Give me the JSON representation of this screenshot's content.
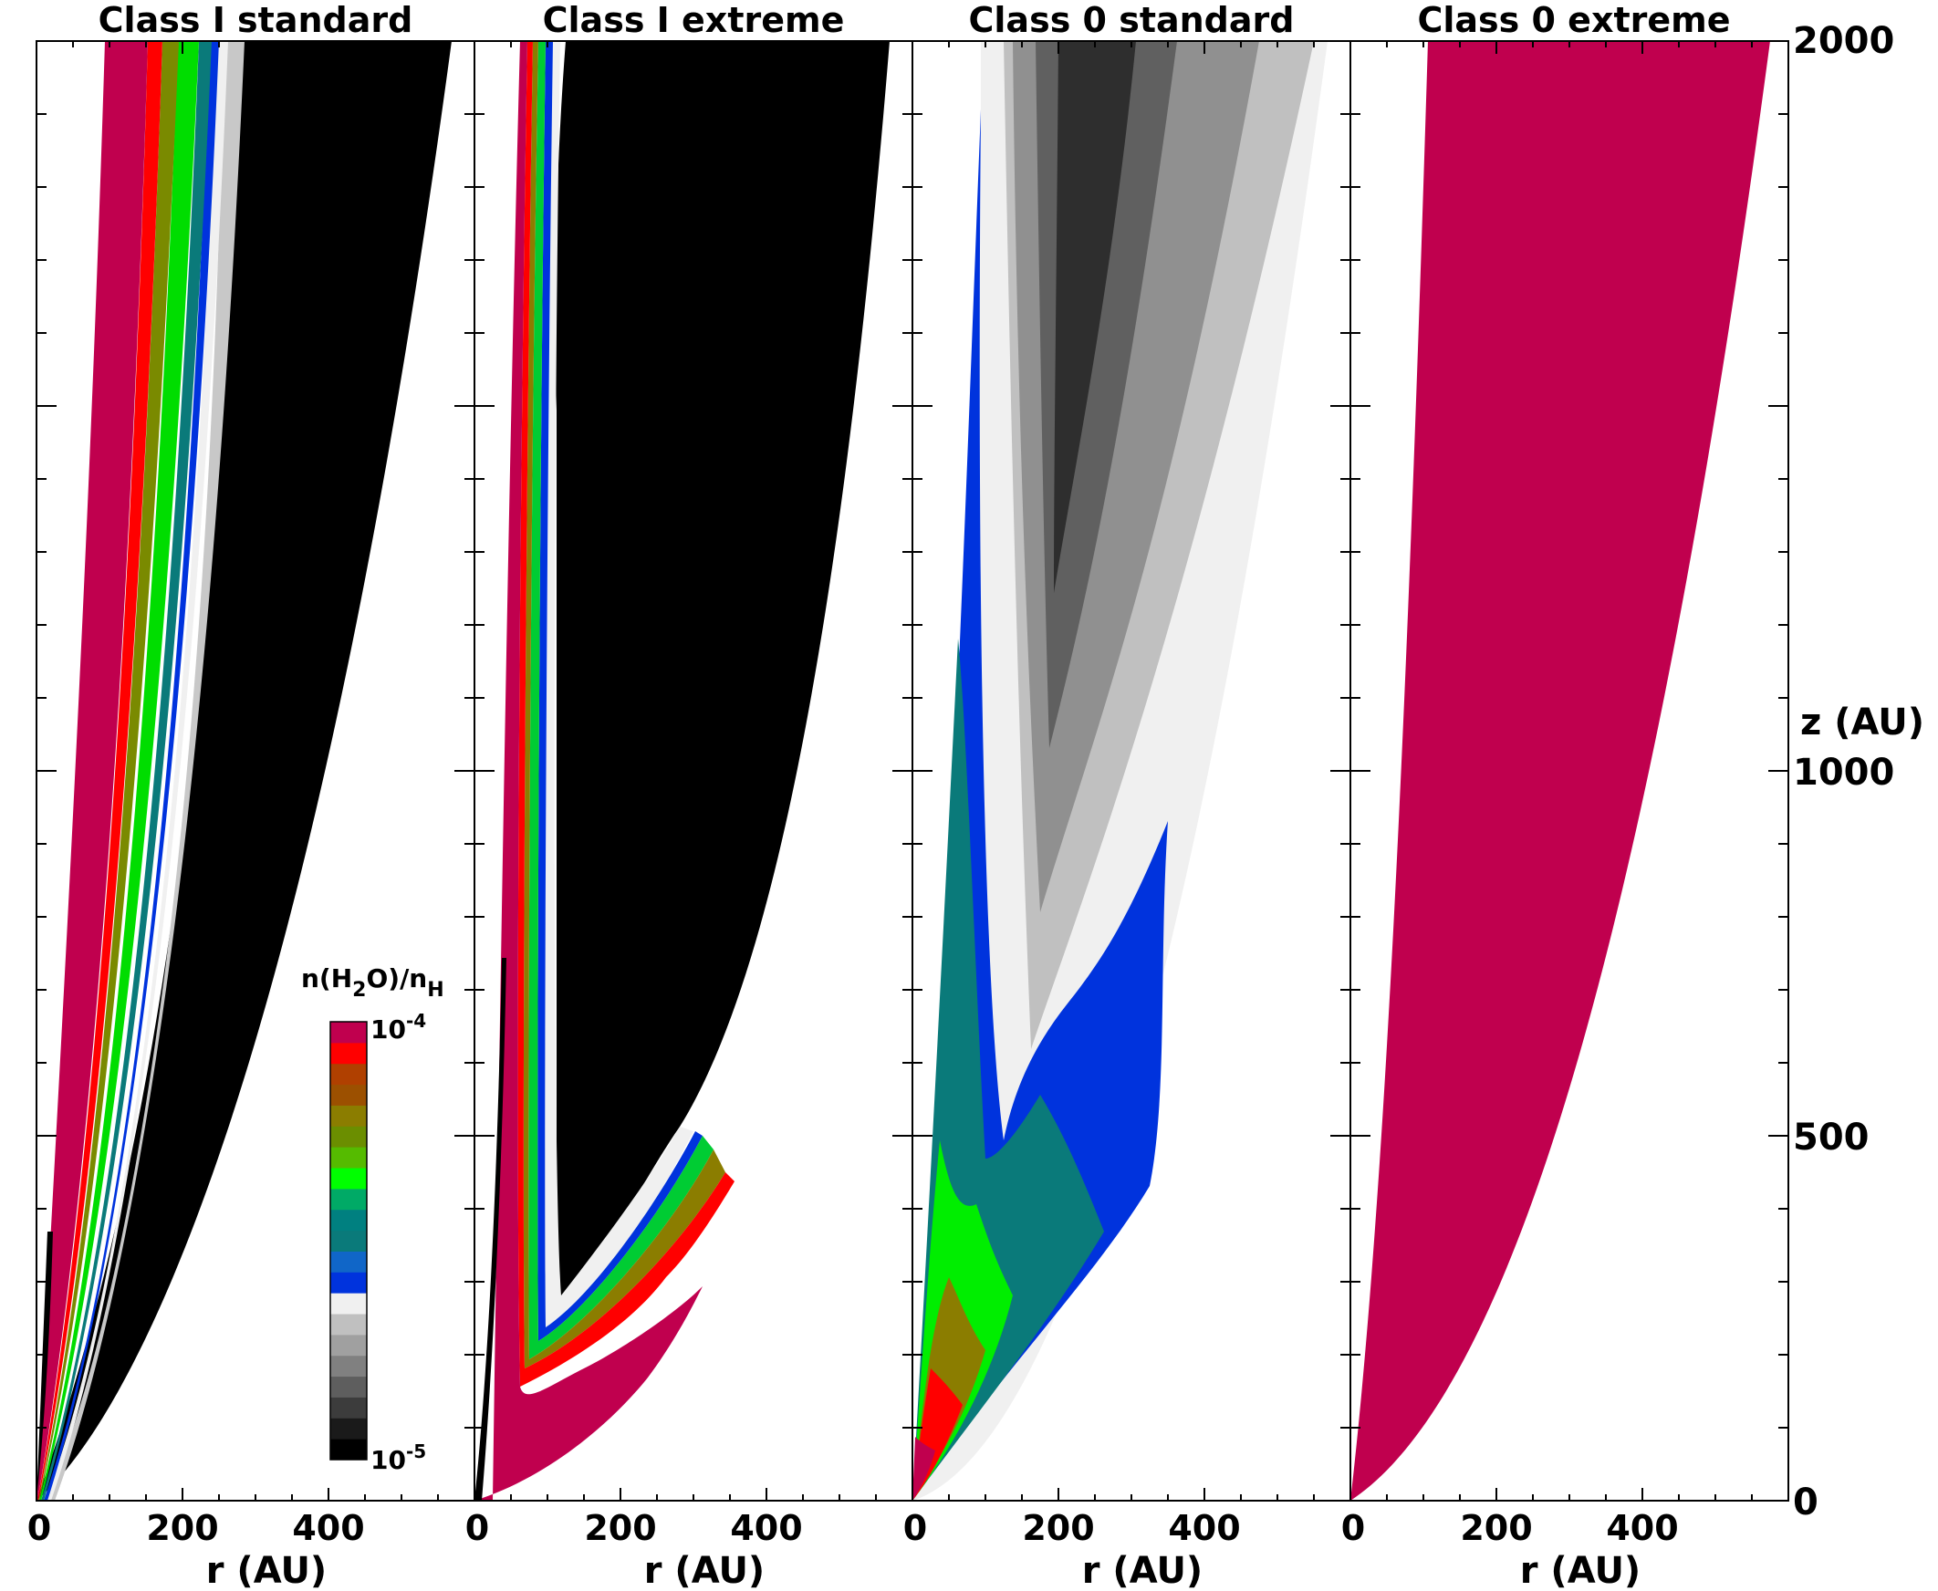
{
  "figure": {
    "panel_titles": [
      "Class I standard",
      "Class I extreme",
      "Class 0 standard",
      "Class 0 extreme"
    ],
    "x_axis_label": "r (AU)",
    "y_axis_label": "z (AU)",
    "x_tick_labels": [
      "0",
      "200",
      "400"
    ],
    "y_tick_labels": [
      "0",
      "500",
      "1000",
      "2000"
    ],
    "colorbar": {
      "title_main": "n(H",
      "title_sub1": "2",
      "title_mid": "O)/n",
      "title_sub2": "H",
      "max_base": "10",
      "max_exp": "-4",
      "min_base": "10",
      "min_exp": "-5"
    }
  },
  "chart_data": {
    "type": "heatmap",
    "quantity": "n(H2O)/nH",
    "colorscale_range": [
      "1e-5",
      "1e-4"
    ],
    "colorscale": [
      "#000000",
      "#1a1a1a",
      "#3c3c3c",
      "#5e5e5e",
      "#808080",
      "#a0a0a0",
      "#c0c0c0",
      "#f0f0f0",
      "#0033dd",
      "#1066c8",
      "#0a7a7a",
      "#008080",
      "#00aa66",
      "#00ff00",
      "#55bb00",
      "#6b8e00",
      "#8b7d00",
      "#9c5000",
      "#b04000",
      "#ff0000",
      "#c0004e"
    ],
    "xlim": [
      0,
      600
    ],
    "ylim": [
      0,
      2000
    ],
    "x_ticks": [
      0,
      200,
      400
    ],
    "y_ticks": [
      0,
      500,
      1000,
      2000
    ],
    "panels": [
      {
        "title": "Class I standard",
        "dominant_features": [
          "high abundance (~1e-4) inner cone r<150 AU",
          "gradient band 150-260 AU",
          "low abundance (~1e-5) outer region"
        ]
      },
      {
        "title": "Class I extreme",
        "dominant_features": [
          "thin high-abundance inner cone",
          "low abundance (~1e-5) bulk of cavity wall",
          "high abundance at base z<300 AU"
        ]
      },
      {
        "title": "Class 0 standard",
        "dominant_features": [
          "intermediate grey levels in upper layer",
          "blue/green levels in lower layer",
          "red/magenta near base"
        ]
      },
      {
        "title": "Class 0 extreme",
        "dominant_features": [
          "uniform high abundance (~1e-4) everywhere"
        ]
      }
    ]
  }
}
